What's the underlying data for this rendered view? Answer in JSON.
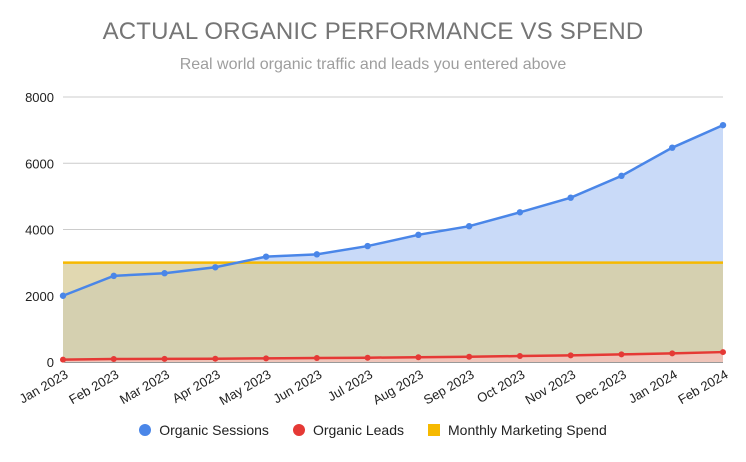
{
  "chart_data": {
    "type": "area",
    "title": "ACTUAL ORGANIC PERFORMANCE VS SPEND",
    "subtitle": "Real world organic traffic and leads you entered above",
    "categories": [
      "Jan 2023",
      "Feb 2023",
      "Mar 2023",
      "Apr 2023",
      "May 2023",
      "Jun 2023",
      "Jul 2023",
      "Aug 2023",
      "Sep 2023",
      "Oct 2023",
      "Nov 2023",
      "Dec 2023",
      "Jan 2024",
      "Feb 2024"
    ],
    "ylim": [
      0,
      8000
    ],
    "yticks": [
      0,
      2000,
      4000,
      6000,
      8000
    ],
    "grid": true,
    "legend_position": "bottom",
    "series": [
      {
        "name": "Organic Sessions",
        "color": "#4a86e8",
        "fill": "#c9daf8",
        "marker": "circle",
        "values": [
          2000,
          2600,
          2680,
          2860,
          3180,
          3250,
          3500,
          3840,
          4100,
          4520,
          4960,
          5620,
          6470,
          7150
        ]
      },
      {
        "name": "Organic Leads",
        "color": "#e53935",
        "fill": "#f2c2ba",
        "marker": "circle",
        "values": [
          70,
          90,
          95,
          100,
          110,
          120,
          130,
          145,
          160,
          180,
          200,
          230,
          260,
          300
        ]
      },
      {
        "name": "Monthly Marketing Spend",
        "color": "#f6b900",
        "fill": "#f9e4a6",
        "marker": "square",
        "values": [
          3000,
          3000,
          3000,
          3000,
          3000,
          3000,
          3000,
          3000,
          3000,
          3000,
          3000,
          3000,
          3000,
          3000
        ]
      }
    ]
  }
}
